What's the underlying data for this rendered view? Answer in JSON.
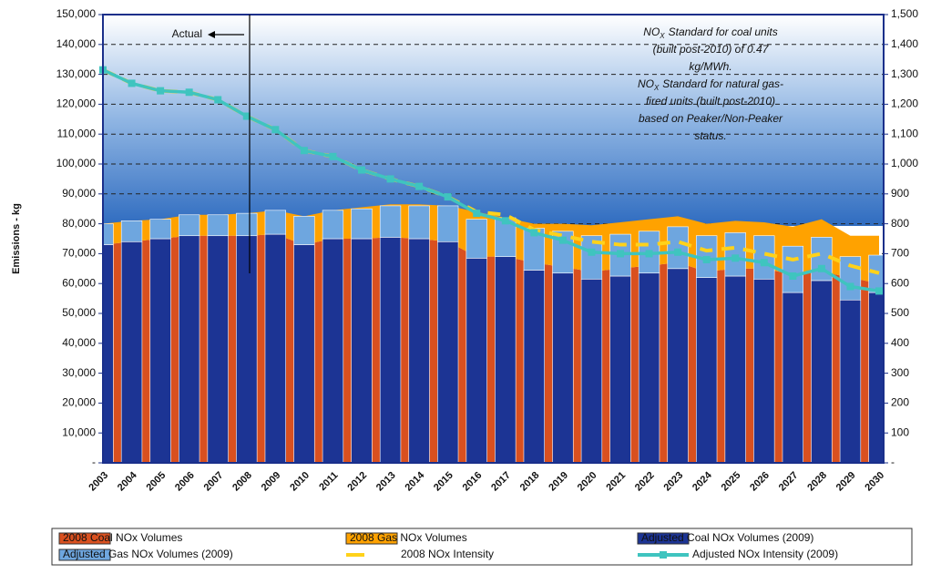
{
  "chart_data": {
    "type": "combo",
    "y_axis_label": "Emissions - kg",
    "categories": [
      "2003",
      "2004",
      "2005",
      "2006",
      "2007",
      "2008",
      "2009",
      "2010",
      "2011",
      "2012",
      "2013",
      "2014",
      "2015",
      "2016",
      "2017",
      "2018",
      "2019",
      "2020",
      "2021",
      "2022",
      "2023",
      "2024",
      "2025",
      "2026",
      "2027",
      "2028",
      "2029",
      "2030"
    ],
    "series": [
      {
        "name": "2008 Coal NOx Volumes",
        "mark": "area",
        "color": "#d9501f",
        "values": [
          73000,
          74000,
          75000,
          76000,
          76000,
          76000,
          76500,
          73000,
          75000,
          75000,
          75500,
          75000,
          74000,
          69000,
          69000,
          67000,
          65500,
          64000,
          65000,
          66000,
          67000,
          64000,
          65000,
          65000,
          63000,
          64000,
          62000,
          60000
        ]
      },
      {
        "name": "2008 Gas NOx Volumes",
        "mark": "area",
        "color": "#ffa200",
        "values": [
          7000,
          7000,
          6500,
          7000,
          7000,
          7500,
          8000,
          9500,
          9500,
          10500,
          11000,
          11500,
          12000,
          15000,
          13000,
          13000,
          14500,
          15500,
          15500,
          15500,
          15500,
          16000,
          16000,
          15500,
          16000,
          17500,
          14000,
          16000
        ]
      },
      {
        "name": "Adjusted Coal NOx Volumes (2009)",
        "mark": "bar",
        "color": "#1c3494",
        "values": [
          73000,
          74000,
          75000,
          76000,
          76000,
          76000,
          76500,
          73000,
          75000,
          75000,
          75500,
          75000,
          74000,
          68500,
          69000,
          64500,
          63500,
          61500,
          62500,
          63500,
          65000,
          62000,
          62500,
          61500,
          57000,
          61000,
          54500,
          57000
        ]
      },
      {
        "name": "Adjusted Gas NOx Volumes (2009)",
        "mark": "bar",
        "color": "#6ea6df",
        "values": [
          7000,
          7000,
          6500,
          7000,
          7000,
          7500,
          8000,
          9500,
          9500,
          10000,
          10500,
          11000,
          12000,
          13000,
          13000,
          14000,
          14000,
          14500,
          14000,
          14000,
          14000,
          14000,
          14500,
          14500,
          15500,
          14500,
          14500,
          12500
        ]
      },
      {
        "name": "2008 NOx Intensity",
        "mark": "dashed-line",
        "axis": "y2",
        "color": "#ffd21a",
        "values": [
          1315,
          1270,
          1245,
          1240,
          1215,
          1160,
          1115,
          1045,
          1025,
          980,
          950,
          925,
          890,
          840,
          830,
          780,
          760,
          740,
          730,
          730,
          740,
          710,
          720,
          700,
          680,
          700,
          660,
          635
        ]
      },
      {
        "name": "Adjusted NOx Intensity (2009)",
        "mark": "marker-line",
        "axis": "y2",
        "color": "#3fc4bf",
        "values": [
          1315,
          1270,
          1245,
          1240,
          1215,
          1160,
          1115,
          1045,
          1025,
          980,
          950,
          925,
          890,
          835,
          810,
          770,
          745,
          705,
          700,
          700,
          705,
          680,
          685,
          670,
          625,
          650,
          590,
          575
        ]
      }
    ],
    "ylim": [
      0,
      150000
    ],
    "yticks": [
      {
        "value": 0,
        "label": "-"
      },
      {
        "value": 10000,
        "label": "10,000"
      },
      {
        "value": 20000,
        "label": "20,000"
      },
      {
        "value": 30000,
        "label": "30,000"
      },
      {
        "value": 40000,
        "label": "40,000"
      },
      {
        "value": 50000,
        "label": "50,000"
      },
      {
        "value": 60000,
        "label": "60,000"
      },
      {
        "value": 70000,
        "label": "70,000"
      },
      {
        "value": 80000,
        "label": "80,000"
      },
      {
        "value": 90000,
        "label": "90,000"
      },
      {
        "value": 100000,
        "label": "100,000"
      },
      {
        "value": 110000,
        "label": "110,000"
      },
      {
        "value": 120000,
        "label": "120,000"
      },
      {
        "value": 130000,
        "label": "130,000"
      },
      {
        "value": 140000,
        "label": "140,000"
      },
      {
        "value": 150000,
        "label": "150,000"
      }
    ],
    "y2lim": [
      0,
      1500
    ],
    "y2ticks": [
      {
        "value": 0,
        "label": "-"
      },
      100,
      200,
      300,
      400,
      500,
      600,
      700,
      800,
      900,
      {
        "value": 1000,
        "label": "1,000"
      },
      {
        "value": 1100,
        "label": "1,100"
      },
      {
        "value": 1200,
        "label": "1,200"
      },
      {
        "value": 1300,
        "label": "1,300"
      },
      {
        "value": 1400,
        "label": "1,400"
      },
      {
        "value": 1500,
        "label": "1,500"
      }
    ],
    "grid": true,
    "actual_label": "Actual",
    "notes": [
      {
        "prefix": "NO",
        "sub": "X",
        "lines": [
          "Standard for coal units",
          "(built post-2010) of 0.47",
          "kg/MWh."
        ]
      },
      {
        "prefix": "NO",
        "sub": "X",
        "lines": [
          "Standard for natural gas-",
          "fired units (built post-2010)",
          "based on Peaker/Non-Peaker",
          "status."
        ]
      }
    ]
  }
}
